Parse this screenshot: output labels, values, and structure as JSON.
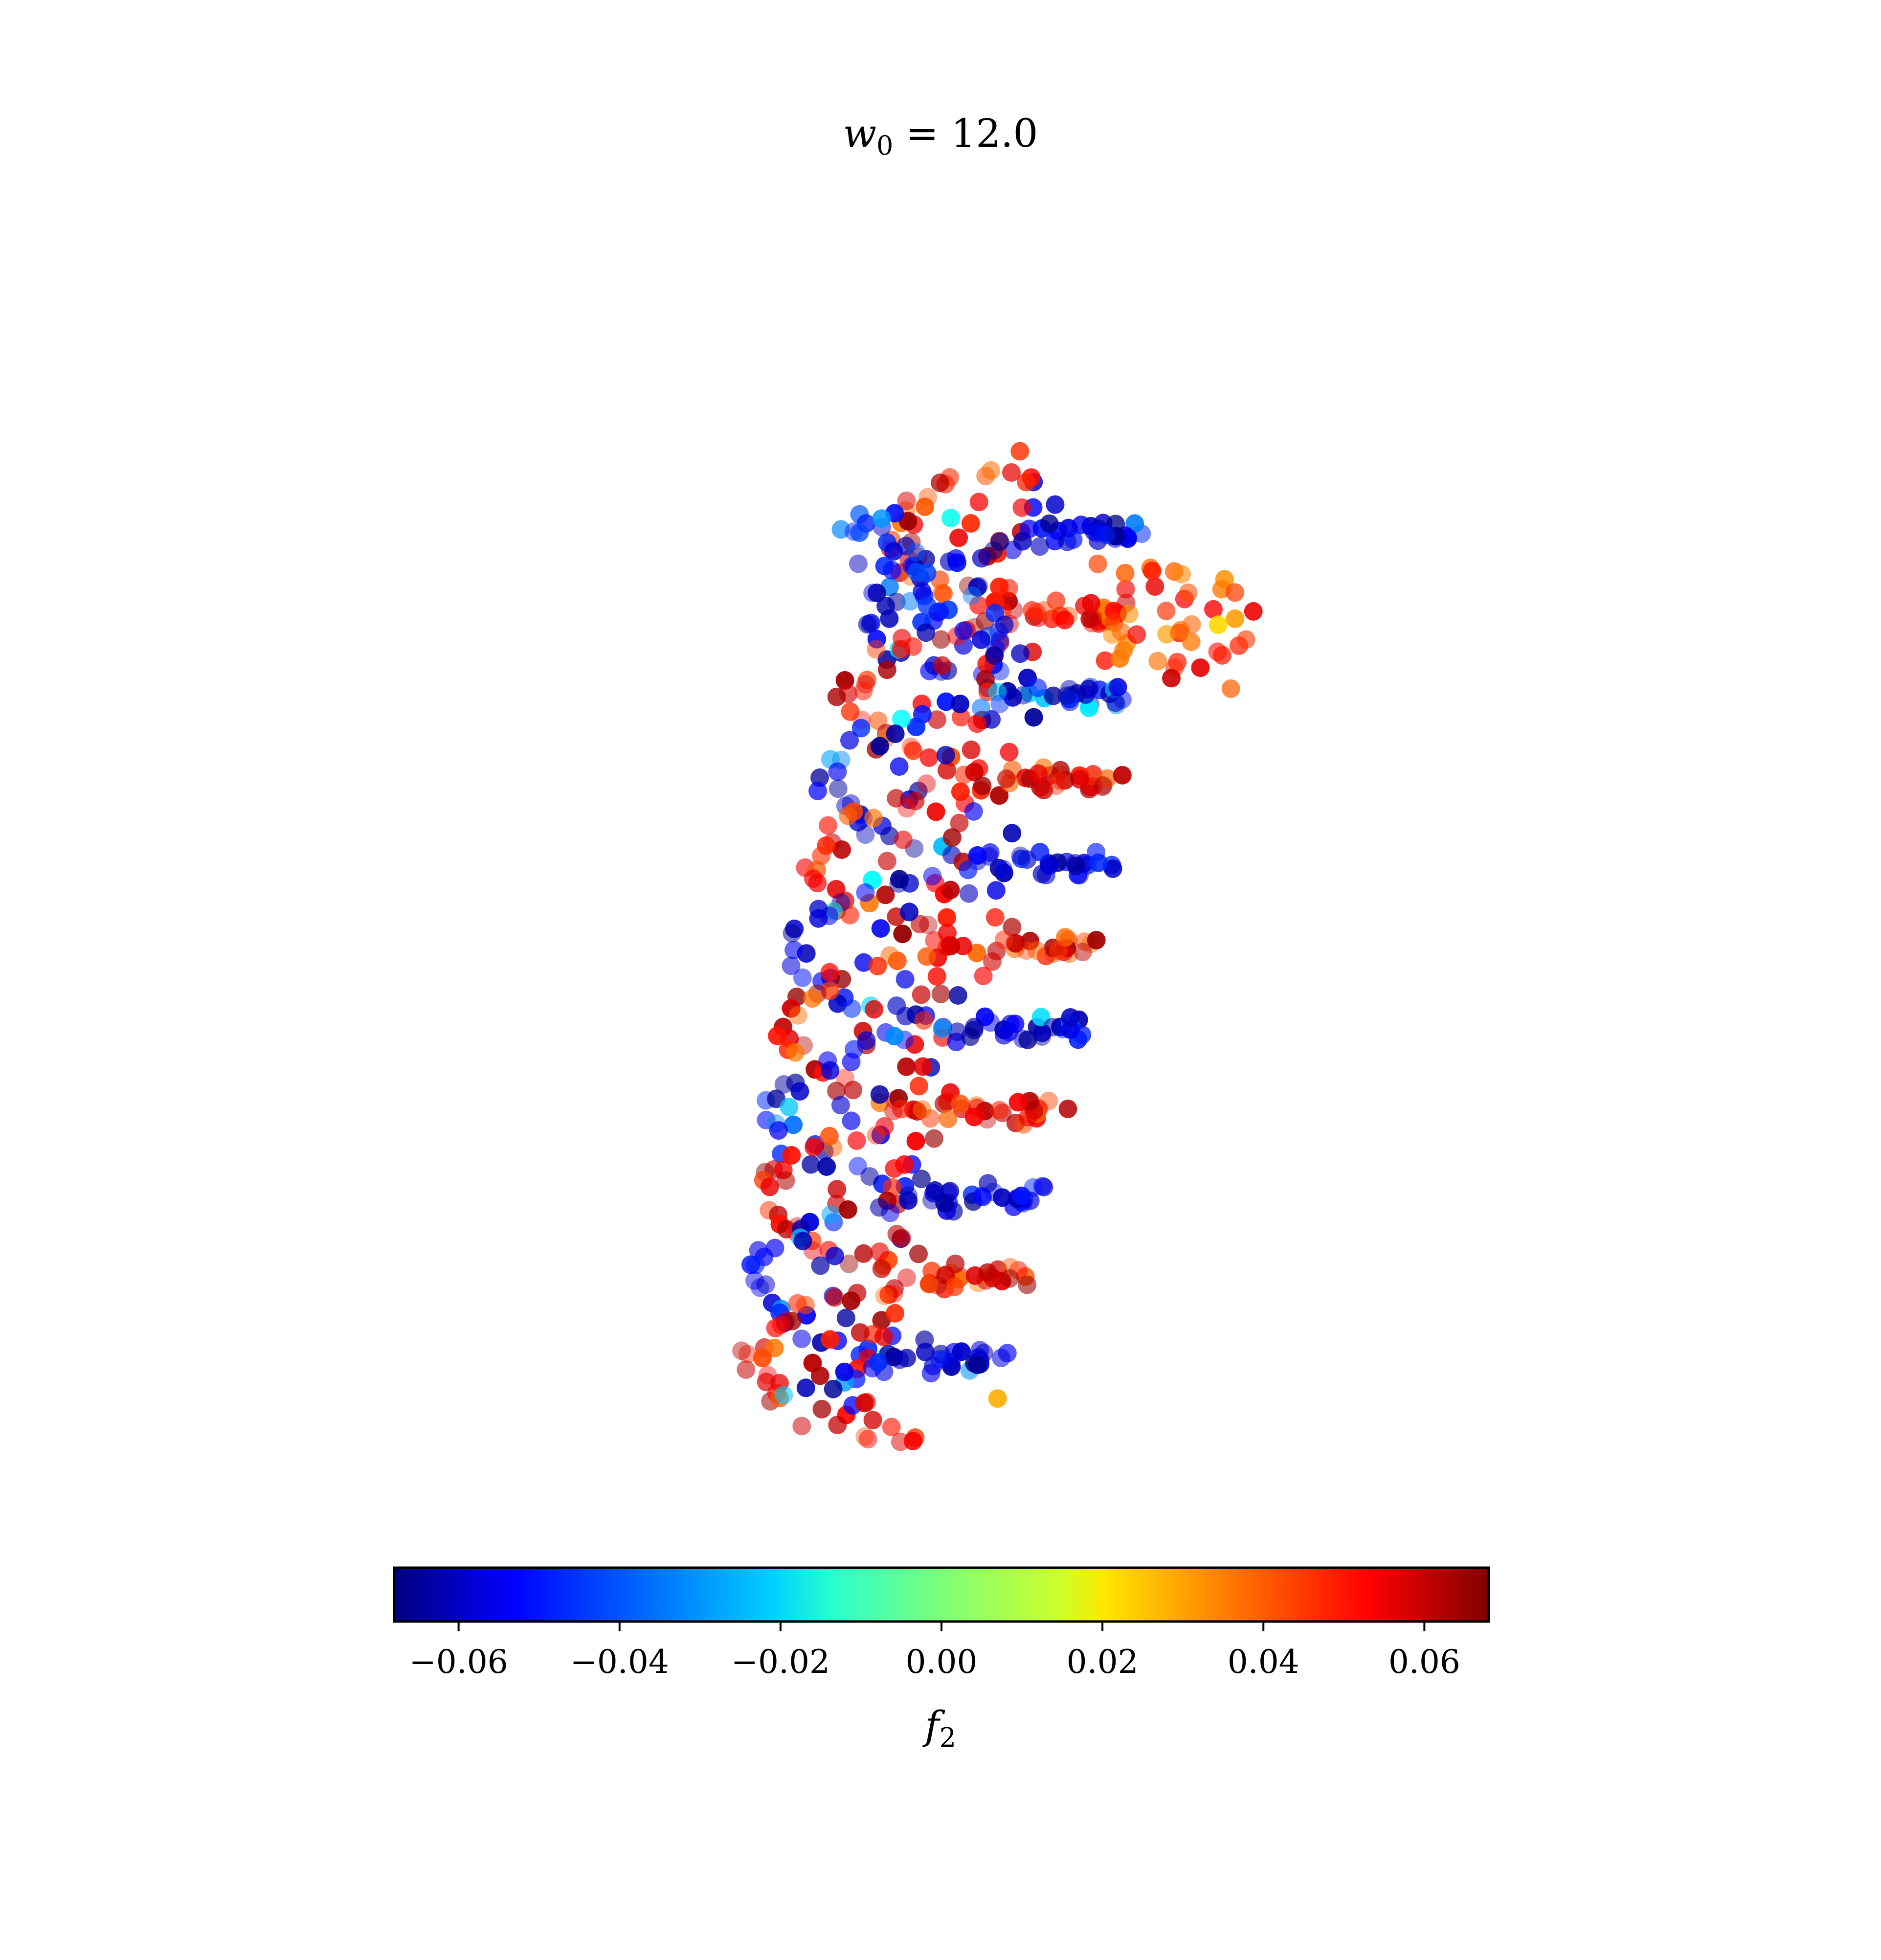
{
  "title": {
    "lhs_base": "w",
    "lhs_sub": "0",
    "rhs": " = 12.0"
  },
  "chart_data": {
    "type": "scatter",
    "title": "w0 = 12.0",
    "colormap": "jet",
    "axes_visible": false,
    "point_alpha": 0.55,
    "colorbar": {
      "label_base": "f",
      "label_sub": "2",
      "placement": "bottom",
      "vmin": -0.068,
      "vmax": 0.068,
      "ticks": [
        -0.06,
        -0.04,
        -0.02,
        0.0,
        0.02,
        0.04,
        0.06
      ],
      "tick_labels": [
        "−0.06",
        "−0.04",
        "−0.02",
        "0.00",
        "0.02",
        "0.04",
        "0.06"
      ]
    },
    "strands": [
      {
        "name_hint": "blue backbone strand",
        "start": [
          -0.031,
          -0.063
        ],
        "end": [
          0.0,
          0.005
        ],
        "x_offset": 0.0,
        "color_value": -0.05
      },
      {
        "name_hint": "red backbone strand",
        "start": [
          0.005,
          0.063
        ],
        "end": [
          0.006,
          -0.005
        ],
        "x_offset": 0.0,
        "color_value": 0.05
      }
    ],
    "highlight_points": [
      {
        "x": -0.003,
        "y": 0.049,
        "c": -0.015
      },
      {
        "x": 0.037,
        "y": 0.037,
        "c": 0.022
      },
      {
        "x": 0.004,
        "y": -0.05,
        "c": 0.028
      },
      {
        "x": 0.03,
        "y": 0.031,
        "c": 0.058
      }
    ],
    "xlim": [
      -0.045,
      0.045
    ],
    "ylim": [
      -0.055,
      0.055
    ]
  }
}
